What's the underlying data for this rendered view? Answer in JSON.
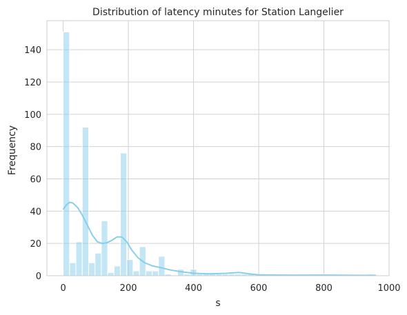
{
  "chart_data": {
    "type": "bar",
    "title": "Distribution of latency minutes for Station Langelier",
    "xlabel": "s",
    "ylabel": "Frequency",
    "xlim": [
      -50,
      1000
    ],
    "ylim": [
      0,
      158
    ],
    "x_ticks": [
      0,
      200,
      400,
      600,
      800,
      1000
    ],
    "y_ticks": [
      0,
      20,
      40,
      60,
      80,
      100,
      120,
      140
    ],
    "grid": true,
    "bin_width": 19.5,
    "bins": [
      {
        "x": 0,
        "count": 151
      },
      {
        "x": 19.5,
        "count": 8
      },
      {
        "x": 39,
        "count": 21
      },
      {
        "x": 58.5,
        "count": 92
      },
      {
        "x": 78,
        "count": 8
      },
      {
        "x": 97.5,
        "count": 14
      },
      {
        "x": 117,
        "count": 34
      },
      {
        "x": 136.5,
        "count": 2
      },
      {
        "x": 156,
        "count": 6
      },
      {
        "x": 175.5,
        "count": 76
      },
      {
        "x": 195,
        "count": 10
      },
      {
        "x": 214.5,
        "count": 3
      },
      {
        "x": 234,
        "count": 18
      },
      {
        "x": 253.5,
        "count": 3
      },
      {
        "x": 273,
        "count": 3
      },
      {
        "x": 292.5,
        "count": 12
      },
      {
        "x": 312,
        "count": 1
      },
      {
        "x": 331.5,
        "count": 0
      },
      {
        "x": 351,
        "count": 4
      },
      {
        "x": 370.5,
        "count": 1
      },
      {
        "x": 390,
        "count": 4
      },
      {
        "x": 409.5,
        "count": 1
      },
      {
        "x": 429,
        "count": 1
      },
      {
        "x": 448.5,
        "count": 1
      },
      {
        "x": 468,
        "count": 1
      },
      {
        "x": 487.5,
        "count": 1
      },
      {
        "x": 507,
        "count": 1
      },
      {
        "x": 526.5,
        "count": 1
      },
      {
        "x": 546,
        "count": 1
      },
      {
        "x": 565.5,
        "count": 1
      },
      {
        "x": 780,
        "count": 1
      },
      {
        "x": 936,
        "count": 1
      }
    ],
    "kde": {
      "x": [
        0,
        10,
        20,
        30,
        45,
        60,
        75,
        90,
        105,
        120,
        135,
        150,
        165,
        180,
        195,
        210,
        230,
        250,
        275,
        300,
        330,
        360,
        400,
        450,
        500,
        540,
        570,
        600,
        700,
        800,
        900,
        960
      ],
      "y": [
        41,
        44,
        45.5,
        45,
        42,
        37,
        31,
        25,
        21,
        20,
        20.5,
        22,
        24,
        24,
        21,
        16,
        11,
        8,
        6,
        5,
        3.5,
        2.5,
        1.5,
        1.2,
        1.5,
        2,
        1.2,
        0.5,
        0.3,
        0.4,
        0.2,
        0.2
      ]
    },
    "colors": {
      "bar_fill": "#87ceeb",
      "bar_edge": "#ffffff",
      "kde_line": "#87ceeb",
      "grid": "#d0d0d0",
      "frame": "#cccccc",
      "text": "#262626"
    }
  }
}
